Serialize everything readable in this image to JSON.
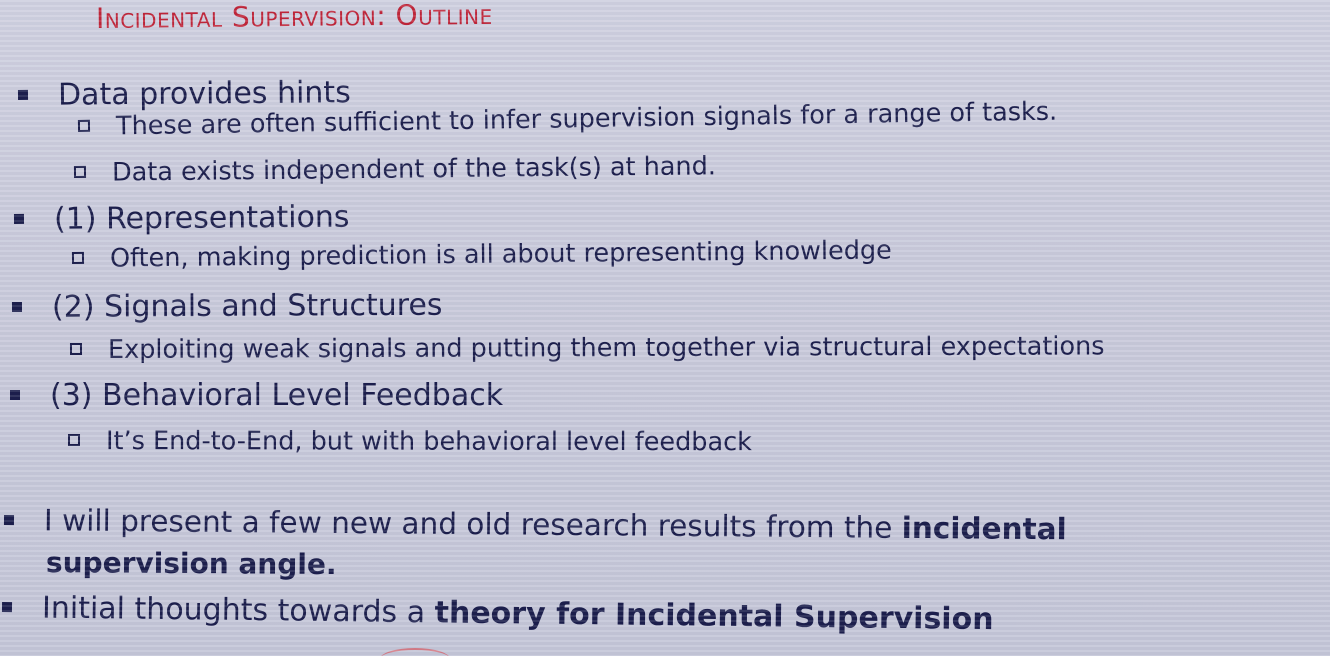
{
  "slide": {
    "title": "Incidental Supervision: Outline",
    "items": [
      {
        "level": 1,
        "text": "Data provides hints"
      },
      {
        "level": 2,
        "text": "These are often sufficient to infer supervision signals for a range of tasks."
      },
      {
        "level": 2,
        "text": "Data exists independent of the task(s) at hand."
      },
      {
        "level": 1,
        "text": "(1) Representations"
      },
      {
        "level": 2,
        "text": "Often, making prediction is all about representing knowledge"
      },
      {
        "level": 1,
        "text": "(2) Signals and Structures"
      },
      {
        "level": 2,
        "text": "Exploiting weak signals and putting them together via structural expectations"
      },
      {
        "level": 1,
        "text": "(3) Behavioral Level Feedback"
      },
      {
        "level": 2,
        "text": "It’s End-to-End, but with behavioral level feedback"
      }
    ],
    "point_present": {
      "part1": "I will present a few new and old research results from the ",
      "bold1": "incidental",
      "bold2": "supervision angle."
    },
    "point_theory": {
      "part1": "Initial thoughts towards a ",
      "bold": "theory for Incidental Supervision"
    }
  },
  "colors": {
    "title": "#c0263a",
    "text": "#1c1f4d",
    "background": "#c9cadb"
  }
}
